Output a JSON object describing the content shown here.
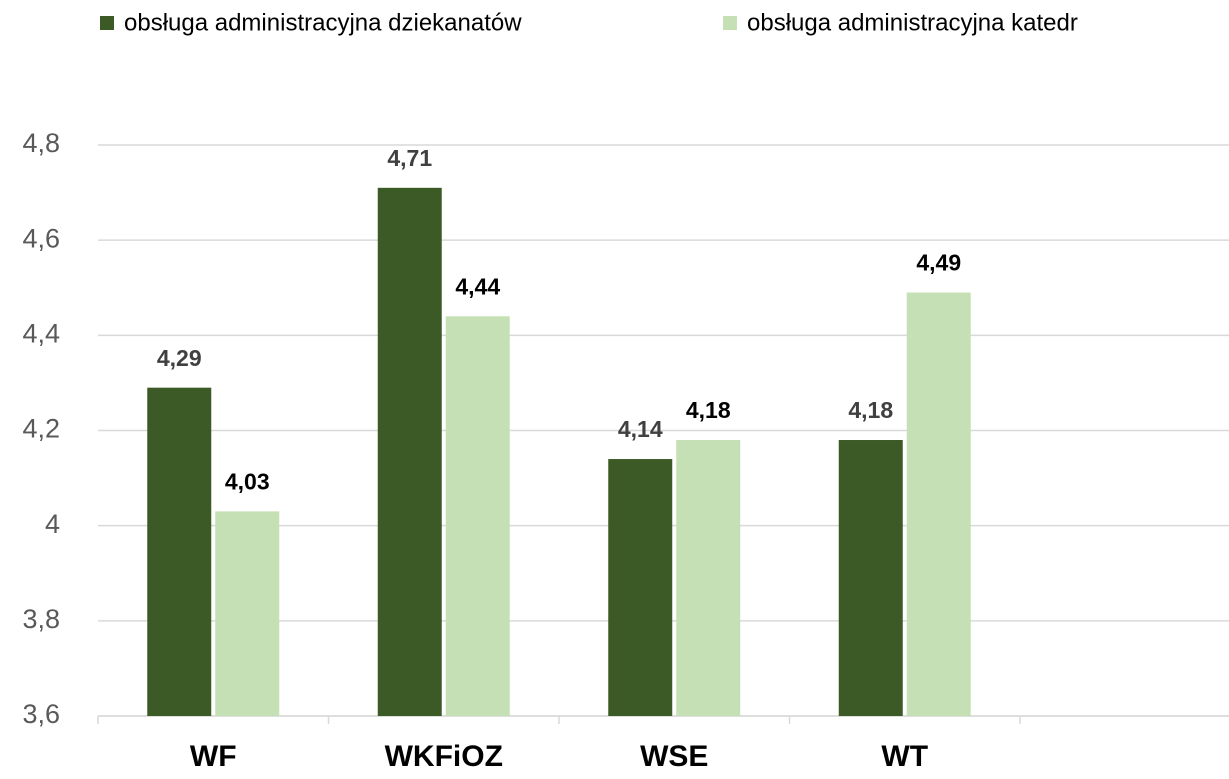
{
  "chart_data": {
    "type": "bar",
    "categories": [
      "WF",
      "WKFiOZ",
      "WSE",
      "WT",
      null
    ],
    "series": [
      {
        "name": "obsługa administracyjna dziekanatów",
        "color": "#3b5a25",
        "values": [
          4.29,
          4.71,
          4.14,
          4.18,
          null
        ],
        "value_labels": [
          "4,29",
          "4,71",
          "4,14",
          "4,18",
          null
        ]
      },
      {
        "name": "obsługa administracyjna katedr",
        "color": "#c5e0b4",
        "values": [
          4.03,
          4.44,
          4.18,
          4.49,
          null
        ],
        "value_labels": [
          "4,03",
          "4,44",
          "4,18",
          "4,49",
          null
        ]
      }
    ],
    "ylim": [
      3.6,
      4.8
    ],
    "yticks": [
      {
        "value": 3.6,
        "label": "3,6"
      },
      {
        "value": 3.8,
        "label": "3,8"
      },
      4,
      {
        "value": 4.2,
        "label": "4,2"
      },
      {
        "value": 4.4,
        "label": "4,4"
      },
      {
        "value": 4.6,
        "label": "4,6"
      },
      {
        "value": 4.8,
        "label": "4,8"
      }
    ],
    "grid": true,
    "legend": "top"
  }
}
